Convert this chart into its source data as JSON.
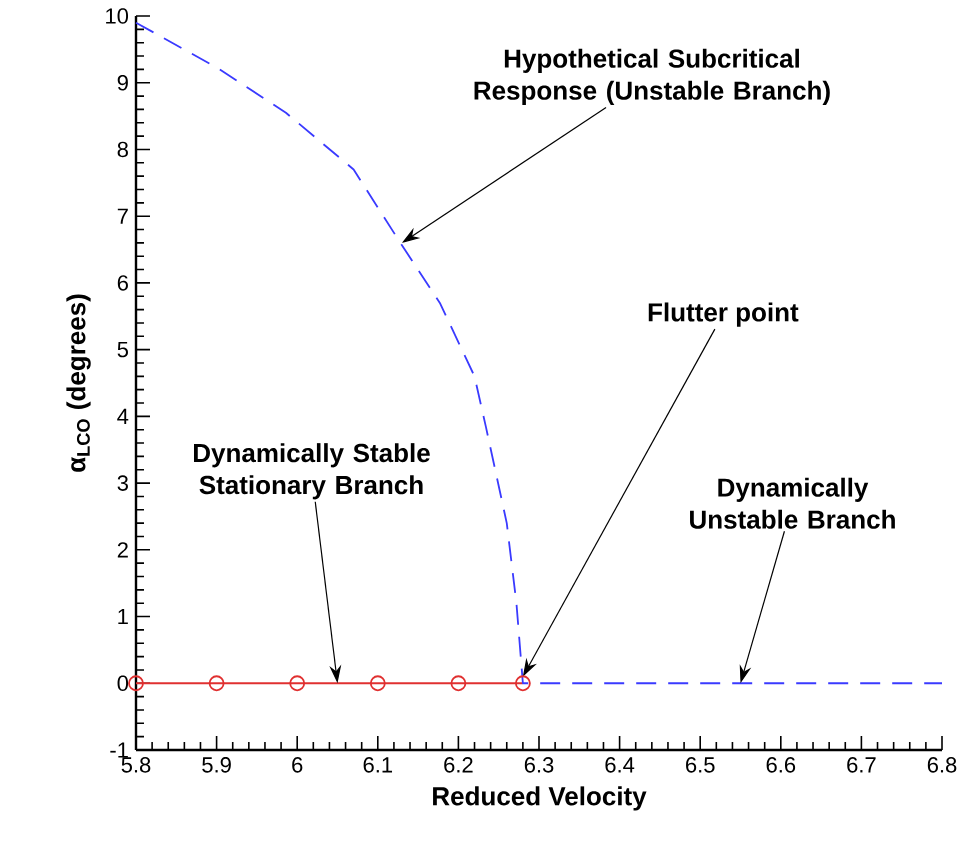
{
  "chart_data": {
    "type": "line",
    "xlabel": "Reduced Velocity",
    "ylabel": "α$_{LCO}$ (degrees)",
    "xlim": [
      5.8,
      6.8
    ],
    "ylim": [
      -1,
      10
    ],
    "xticks": [
      5.8,
      5.9,
      6,
      6.1,
      6.2,
      6.3,
      6.4,
      6.5,
      6.6,
      6.7,
      6.8
    ],
    "yticks": [
      -1,
      0,
      1,
      2,
      3,
      4,
      5,
      6,
      7,
      8,
      9,
      10
    ],
    "series": [
      {
        "color": "#e03030",
        "marker": "circle",
        "line_style": "solid",
        "x": [
          5.8,
          5.9,
          6.0,
          6.1,
          6.2,
          6.28
        ],
        "values": [
          0,
          0,
          0,
          0,
          0,
          0
        ]
      },
      {
        "color": "#3a3aff",
        "marker": "none",
        "line_style": "dashed",
        "x": [
          5.8,
          5.904,
          5.986,
          6.07,
          6.128,
          6.177,
          6.22,
          6.234,
          6.26,
          6.272,
          6.28,
          6.8
        ],
        "values": [
          9.9,
          9.2,
          8.55,
          7.7,
          6.6,
          5.7,
          4.6,
          3.85,
          2.4,
          1.2,
          0,
          0
        ]
      }
    ],
    "annotations": [
      {
        "text": "Hypothetical Subcritical Response (Unstable Branch)",
        "x": 6.13,
        "y": 6.6
      },
      {
        "text": "Flutter point",
        "x": 6.28,
        "y": 0.1
      },
      {
        "text": "Dynamically Stable Stationary Branch",
        "x": 6.05,
        "y": 0
      },
      {
        "text": "Dynamically Unstable Branch",
        "x": 6.55,
        "y": 0
      }
    ]
  }
}
